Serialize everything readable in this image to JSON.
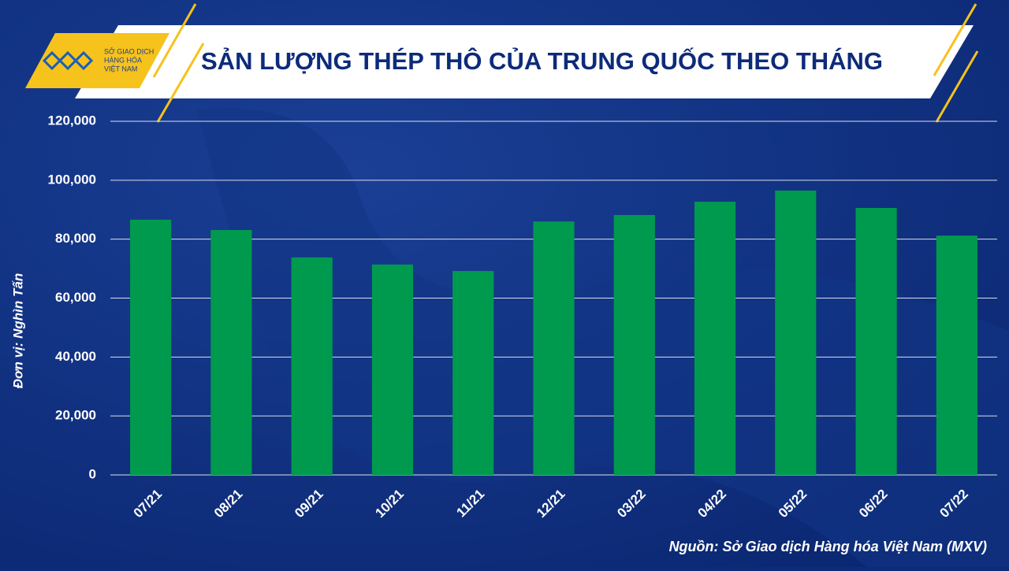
{
  "logo": {
    "lines": [
      "SỞ GIAO DỊCH",
      "HÀNG HÓA",
      "VIỆT NAM"
    ]
  },
  "chart_data": {
    "type": "bar",
    "title": "SẢN LƯỢNG THÉP THÔ CỦA TRUNG QUỐC THEO THÁNG",
    "y_label": "Đơn vị: Nghìn Tấn",
    "source": "Nguồn: Sở Giao dịch Hàng hóa Việt Nam (MXV)",
    "categories": [
      "07/21",
      "08/21",
      "09/21",
      "10/21",
      "11/21",
      "12/21",
      "03/22",
      "04/22",
      "05/22",
      "06/22",
      "07/22"
    ],
    "values": [
      86600,
      83100,
      73800,
      71400,
      69200,
      86000,
      88200,
      92700,
      96500,
      90600,
      81200
    ],
    "color": "#009a4e",
    "ylim": [
      0,
      120000
    ],
    "yticks": [
      0,
      {
        "value": 20000,
        "label": "20,000"
      },
      {
        "value": 40000,
        "label": "40,000"
      },
      {
        "value": 60000,
        "label": "60,000"
      },
      {
        "value": 80000,
        "label": "80,000"
      },
      {
        "value": 100000,
        "label": "100,000"
      },
      {
        "value": 120000,
        "label": "120,000"
      }
    ],
    "grid": true
  }
}
